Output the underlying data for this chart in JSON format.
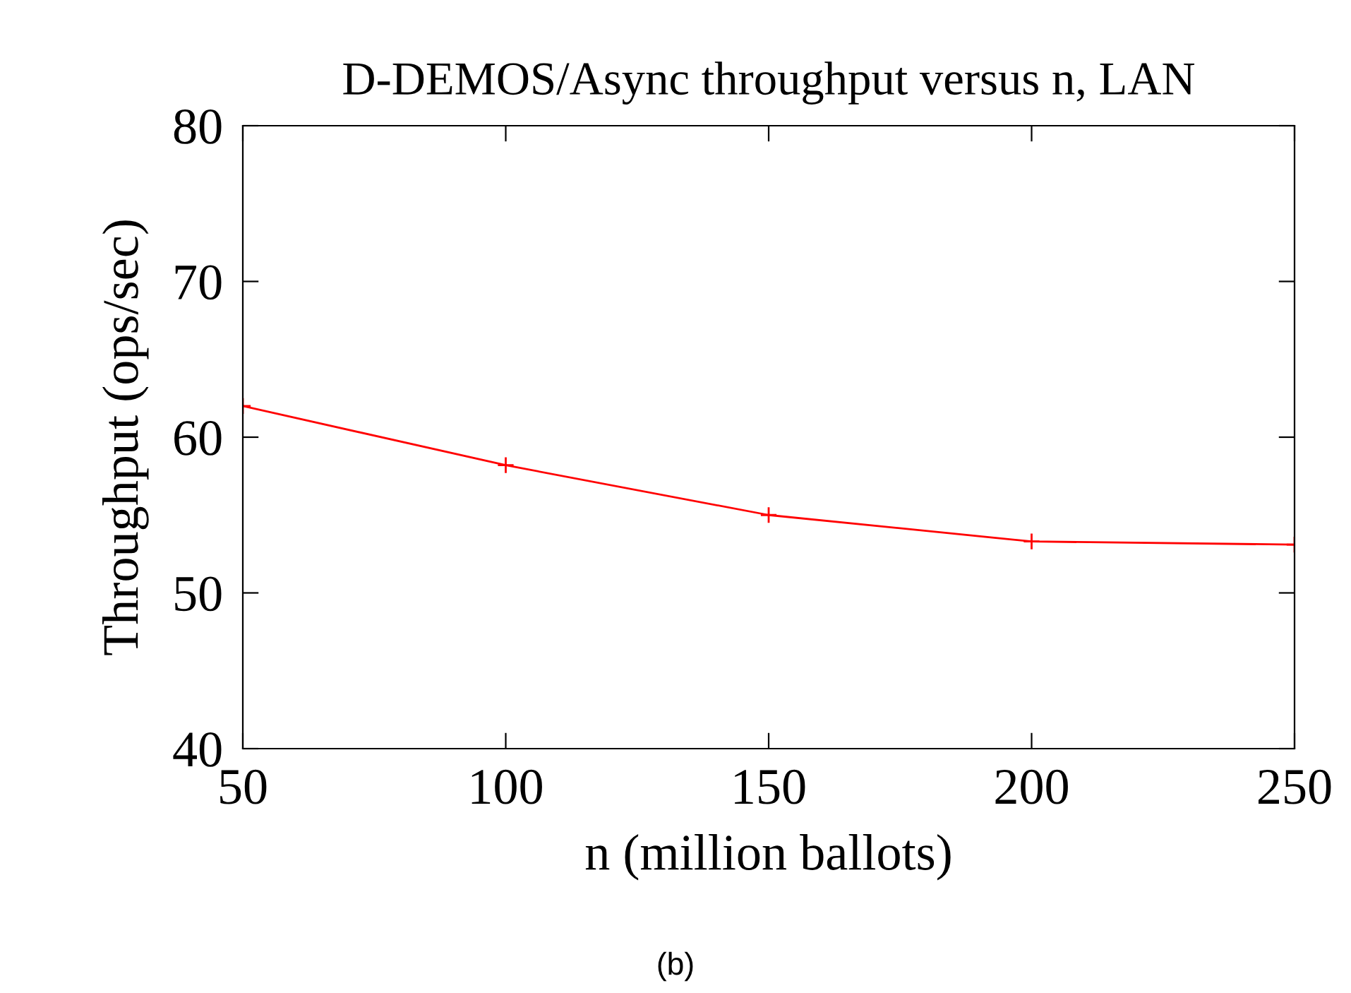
{
  "chart_data": {
    "type": "line",
    "title": "D-DEMOS/Async throughput versus n, LAN",
    "xlabel": "n (million ballots)",
    "ylabel": "Throughput (ops/sec)",
    "annotations": [
      "(b)"
    ],
    "x": [
      50,
      100,
      150,
      200,
      250
    ],
    "series": [
      {
        "color": "#ff0000",
        "values": [
          62.0,
          58.2,
          55.0,
          53.3,
          53.1
        ]
      }
    ],
    "xlim": [
      50,
      250
    ],
    "xticks": [
      50,
      100,
      150,
      200,
      250
    ],
    "ylim": [
      40,
      80
    ],
    "yticks": [
      40,
      50,
      60,
      70,
      80
    ],
    "grid": false,
    "legend": false,
    "marker": "cross",
    "line_style": "solid"
  }
}
